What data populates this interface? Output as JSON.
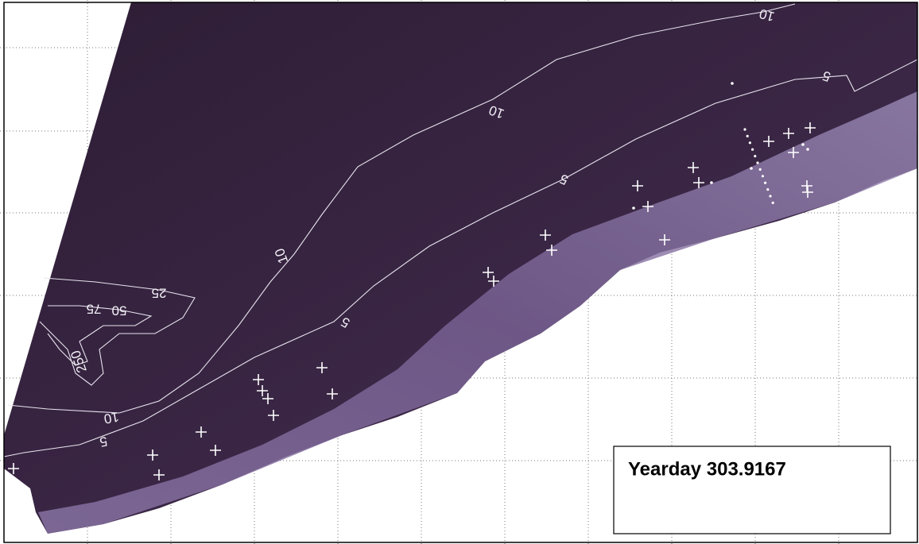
{
  "map": {
    "contour_labels": [
      "10",
      "5",
      "10",
      "5",
      "10",
      "5",
      "25",
      "75",
      "50",
      "250",
      "10",
      "5"
    ]
  },
  "label_box": {
    "text": "Yearday 303.9167"
  }
}
